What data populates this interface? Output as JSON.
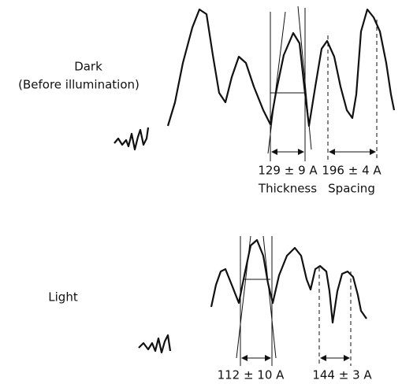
{
  "upper": {
    "label": "Dark",
    "sublabel": "(Before illumination)",
    "thickness": "129 ± 9 A",
    "spacing": "196 ± 4 A",
    "thickness_caption": "Thickness",
    "spacing_caption": "Spacing"
  },
  "lower": {
    "label": "Light",
    "thickness": "112 ± 10 A",
    "spacing": "144 ± 3 A"
  }
}
